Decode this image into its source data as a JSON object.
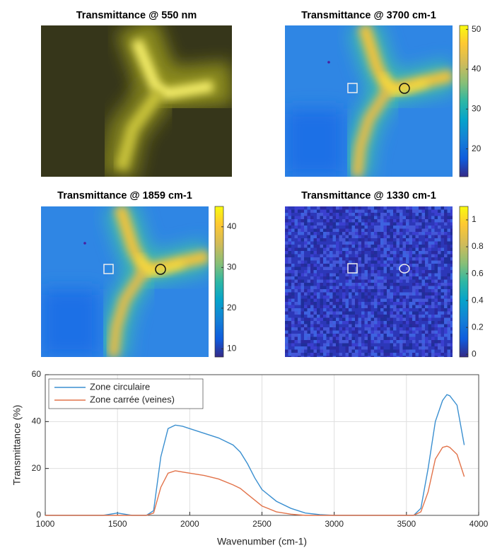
{
  "chart_data": [
    {
      "type": "image",
      "title": "Transmittance @ 550 nm"
    },
    {
      "type": "heatmap",
      "title": "Transmittance @ 3700 cm-1",
      "clim": [
        13,
        51
      ],
      "cticks": [
        20,
        30,
        40,
        50
      ]
    },
    {
      "type": "heatmap",
      "title": "Transmittance @ 1859 cm-1",
      "clim": [
        8,
        45
      ],
      "cticks": [
        10,
        20,
        30,
        40
      ]
    },
    {
      "type": "heatmap",
      "title": "Transmittance @ 1330 cm-1",
      "clim": [
        -0.02,
        1.1
      ],
      "cticks": [
        0,
        0.2,
        0.4,
        0.6,
        0.8,
        1
      ]
    },
    {
      "type": "line",
      "xlabel": "Wavenumber (cm-1)",
      "ylabel": "Transmittance (%)",
      "x": [
        1000,
        1200,
        1400,
        1500,
        1600,
        1700,
        1750,
        1800,
        1850,
        1900,
        1950,
        2000,
        2100,
        2200,
        2300,
        2350,
        2400,
        2450,
        2500,
        2600,
        2700,
        2800,
        2900,
        3000,
        3200,
        3400,
        3550,
        3600,
        3650,
        3700,
        3750,
        3780,
        3800,
        3850,
        3900
      ],
      "series": [
        {
          "name": "Zone circulaire",
          "color": "#3a8fd0",
          "values": [
            0,
            0,
            0,
            1,
            0,
            0,
            2,
            25,
            37,
            38.5,
            38,
            37,
            35,
            33,
            30,
            27,
            22,
            16,
            11,
            6,
            3,
            1,
            0.3,
            0,
            0,
            0,
            0,
            3,
            20,
            40,
            49,
            51.5,
            51,
            47,
            30
          ]
        },
        {
          "name": "Zone carrée (veines)",
          "color": "#e2734a",
          "values": [
            0,
            0,
            0,
            0,
            0,
            0,
            1,
            12,
            18,
            19,
            18.5,
            18,
            17,
            15.5,
            13,
            11.5,
            9,
            6.5,
            4,
            1.5,
            0.5,
            0,
            0,
            0,
            0,
            0,
            0,
            1.5,
            10,
            24,
            29,
            29.5,
            29,
            26,
            16.5
          ]
        }
      ],
      "xlim": [
        1000,
        4000
      ],
      "ylim": [
        0,
        60
      ],
      "xticks": [
        1000,
        1500,
        2000,
        2500,
        3000,
        3500,
        4000
      ],
      "yticks": [
        0,
        20,
        40,
        60
      ],
      "grid": true,
      "legend": "upper left"
    }
  ]
}
